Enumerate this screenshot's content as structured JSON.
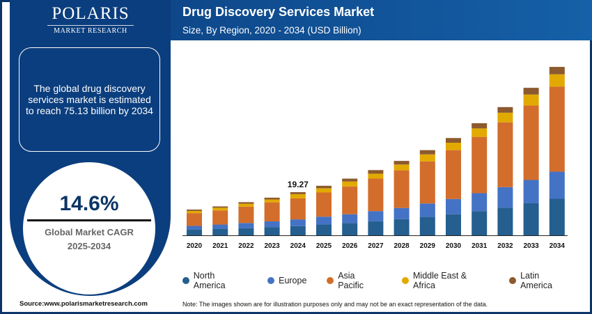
{
  "logo": {
    "name": "POLARIS",
    "tagline": "MARKET RESEARCH"
  },
  "header": {
    "title": "Drug Discovery Services Market",
    "subtitle": "Size, By Region, 2020 - 2034 (USD Billion)"
  },
  "sidebar": {
    "summary": "The global drug discovery services market is estimated to reach 75.13 billion by 2034",
    "cagr_value": "14.6%",
    "cagr_label": "Global Market CAGR",
    "cagr_period": "2025-2034"
  },
  "footer": {
    "source": "Source:www.polarismarketresearch.com",
    "note": "Note: The images shown are for illustration purposes only and may not be an exact representation of the data."
  },
  "chart_data": {
    "type": "bar",
    "stacked": true,
    "title": "Drug Discovery Services Market",
    "subtitle": "Size, By Region, 2020 - 2034 (USD Billion)",
    "categories": [
      "2020",
      "2021",
      "2022",
      "2023",
      "2024",
      "2025",
      "2026",
      "2027",
      "2028",
      "2029",
      "2030",
      "2031",
      "2032",
      "2033",
      "2034"
    ],
    "series": [
      {
        "name": "North America",
        "color": "#245f8f",
        "values": [
          2.6,
          2.8,
          3.2,
          3.6,
          4.1,
          4.8,
          5.5,
          6.3,
          7.2,
          8.2,
          9.4,
          10.8,
          12.3,
          14.3,
          16.3
        ]
      },
      {
        "name": "Europe",
        "color": "#4472c4",
        "values": [
          1.6,
          2.0,
          2.3,
          2.6,
          3.0,
          3.5,
          3.9,
          4.5,
          5.0,
          6.0,
          6.8,
          8.0,
          9.2,
          10.4,
          12.1
        ]
      },
      {
        "name": "Asia Pacific",
        "color": "#d36d2c",
        "values": [
          5.7,
          6.3,
          7.3,
          8.5,
          9.37,
          10.8,
          12.4,
          14.5,
          16.8,
          18.8,
          21.8,
          25.1,
          28.9,
          33.2,
          37.93
        ]
      },
      {
        "name": "Middle East & Africa",
        "color": "#e2aa00",
        "values": [
          1.0,
          1.2,
          1.3,
          1.3,
          1.9,
          1.9,
          2.2,
          2.2,
          2.6,
          3.1,
          3.3,
          3.8,
          4.3,
          4.9,
          5.5
        ]
      },
      {
        "name": "Latin America",
        "color": "#8c5a2e",
        "values": [
          0.6,
          0.6,
          0.7,
          0.8,
          0.9,
          1.1,
          1.3,
          1.6,
          1.6,
          1.9,
          2.1,
          2.3,
          2.5,
          3.0,
          3.3
        ]
      }
    ],
    "annotations": [
      {
        "category": "2024",
        "label": "19.27"
      }
    ],
    "ylim": [
      0,
      78
    ],
    "xlabel": "",
    "ylabel": "",
    "grid": false,
    "legend": "bottom"
  }
}
